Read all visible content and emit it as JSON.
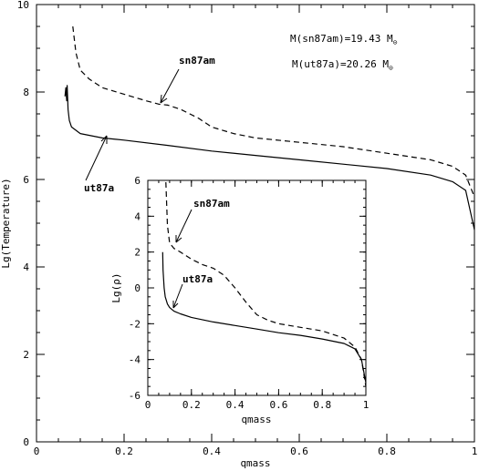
{
  "chart_data": [
    {
      "type": "line",
      "panel": "main",
      "xlabel": "qmass",
      "ylabel": "Lg(Temperature)",
      "xlim": [
        0,
        1
      ],
      "ylim": [
        0,
        10
      ],
      "xticks": [
        "0",
        "0.2",
        "0.4",
        "0.6",
        "0.8",
        "1"
      ],
      "yticks": [
        "0",
        "2",
        "4",
        "6",
        "8",
        "10"
      ],
      "series": [
        {
          "name": "sn87am",
          "style": "dashed",
          "x": [
            0.083,
            0.09,
            0.1,
            0.12,
            0.15,
            0.2,
            0.25,
            0.28,
            0.3,
            0.33,
            0.35,
            0.37,
            0.4,
            0.45,
            0.5,
            0.6,
            0.7,
            0.8,
            0.9,
            0.95,
            0.98,
            1.0
          ],
          "y": [
            9.5,
            8.9,
            8.5,
            8.3,
            8.1,
            7.95,
            7.8,
            7.72,
            7.7,
            7.6,
            7.5,
            7.4,
            7.2,
            7.05,
            6.95,
            6.85,
            6.75,
            6.6,
            6.45,
            6.3,
            6.1,
            5.6
          ]
        },
        {
          "name": "ut87a",
          "style": "solid",
          "x": [
            0.065,
            0.067,
            0.069,
            0.07,
            0.072,
            0.075,
            0.08,
            0.1,
            0.15,
            0.2,
            0.3,
            0.4,
            0.5,
            0.6,
            0.7,
            0.8,
            0.9,
            0.95,
            0.98,
            1.0
          ],
          "y": [
            7.9,
            8.1,
            7.8,
            8.15,
            7.6,
            7.35,
            7.2,
            7.05,
            6.95,
            6.9,
            6.78,
            6.65,
            6.55,
            6.45,
            6.35,
            6.25,
            6.1,
            5.95,
            5.75,
            4.85
          ]
        }
      ],
      "annotations": {
        "sn87am": "sn87am",
        "ut87a": "ut87a",
        "mass_sn": "M(sn87am)=19.43 M",
        "mass_ut": "M(ut87a)=20.26 M",
        "sun_symbol": "⊙"
      }
    },
    {
      "type": "line",
      "panel": "inset",
      "xlabel": "qmass",
      "ylabel": "Lg(ρ)",
      "xlim": [
        0,
        1
      ],
      "ylim": [
        -6,
        6
      ],
      "xticks": [
        "0",
        "0.2",
        "0.4",
        "0.6",
        "0.8",
        "1"
      ],
      "yticks": [
        "-6",
        "-4",
        "-2",
        "0",
        "2",
        "4",
        "6"
      ],
      "series": [
        {
          "name": "sn87am",
          "style": "dashed",
          "x": [
            0.083,
            0.09,
            0.1,
            0.12,
            0.15,
            0.2,
            0.25,
            0.3,
            0.35,
            0.4,
            0.45,
            0.5,
            0.55,
            0.6,
            0.7,
            0.8,
            0.9,
            0.95,
            0.98,
            1.0
          ],
          "y": [
            5.9,
            3.5,
            2.5,
            2.2,
            2.0,
            1.6,
            1.3,
            1.1,
            0.7,
            0.0,
            -0.8,
            -1.5,
            -1.8,
            -2.0,
            -2.2,
            -2.4,
            -2.8,
            -3.3,
            -4.0,
            -5.5
          ]
        },
        {
          "name": "ut87a",
          "style": "solid",
          "x": [
            0.068,
            0.07,
            0.075,
            0.08,
            0.09,
            0.1,
            0.12,
            0.15,
            0.2,
            0.3,
            0.4,
            0.5,
            0.6,
            0.7,
            0.8,
            0.9,
            0.95,
            0.98,
            1.0
          ],
          "y": [
            2.0,
            1.0,
            0.0,
            -0.5,
            -0.9,
            -1.1,
            -1.3,
            -1.45,
            -1.65,
            -1.9,
            -2.1,
            -2.3,
            -2.5,
            -2.65,
            -2.85,
            -3.1,
            -3.4,
            -4.0,
            -5.3
          ]
        }
      ],
      "annotations": {
        "sn87am": "sn87am",
        "ut87a": "ut87a"
      }
    }
  ]
}
